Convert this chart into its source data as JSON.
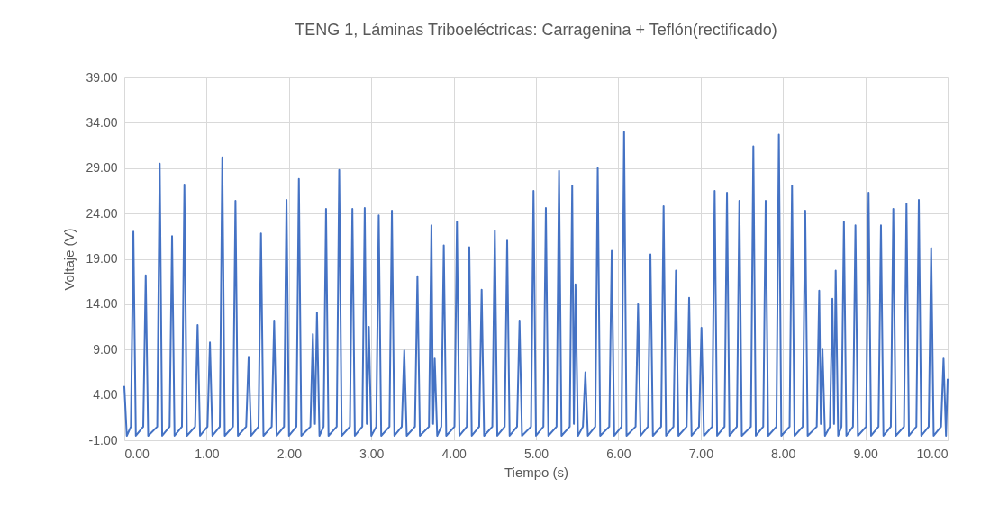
{
  "chart_data": {
    "type": "line",
    "title": "TENG 1, Láminas Triboeléctricas: Carragenina + Teflón(rectificado)",
    "xlabel": "Tiempo (s)",
    "ylabel": "Voltaje (V)",
    "x": [
      0,
      0.03,
      0.08,
      0.11,
      0.14,
      0.23,
      0.26,
      0.29,
      0.4,
      0.43,
      0.46,
      0.55,
      0.58,
      0.61,
      0.7,
      0.73,
      0.76,
      0.86,
      0.89,
      0.92,
      1.01,
      1.04,
      1.07,
      1.16,
      1.19,
      1.22,
      1.32,
      1.35,
      1.38,
      1.48,
      1.51,
      1.54,
      1.63,
      1.66,
      1.69,
      1.79,
      1.82,
      1.85,
      1.94,
      1.97,
      2.0,
      2.09,
      2.12,
      2.15,
      2.26,
      2.29,
      2.315,
      2.34,
      2.37,
      2.42,
      2.45,
      2.48,
      2.58,
      2.61,
      2.64,
      2.74,
      2.77,
      2.8,
      2.89,
      2.92,
      2.945,
      2.97,
      3.0,
      3.06,
      3.09,
      3.12,
      3.22,
      3.25,
      3.28,
      3.37,
      3.4,
      3.43,
      3.53,
      3.56,
      3.59,
      3.7,
      3.73,
      3.75,
      3.77,
      3.8,
      3.85,
      3.88,
      3.91,
      4.01,
      4.04,
      4.07,
      4.16,
      4.19,
      4.22,
      4.31,
      4.34,
      4.37,
      4.47,
      4.5,
      4.53,
      4.62,
      4.65,
      4.68,
      4.77,
      4.8,
      4.83,
      4.94,
      4.97,
      5.0,
      5.09,
      5.12,
      5.15,
      5.25,
      5.28,
      5.31,
      5.41,
      5.44,
      5.46,
      5.48,
      5.51,
      5.57,
      5.6,
      5.63,
      5.72,
      5.75,
      5.78,
      5.89,
      5.92,
      5.95,
      6.04,
      6.07,
      6.1,
      6.21,
      6.24,
      6.27,
      6.36,
      6.39,
      6.42,
      6.52,
      6.55,
      6.58,
      6.67,
      6.7,
      6.73,
      6.83,
      6.86,
      6.89,
      6.98,
      7.01,
      7.04,
      7.14,
      7.17,
      7.2,
      7.29,
      7.32,
      7.35,
      7.44,
      7.47,
      7.5,
      7.61,
      7.64,
      7.67,
      7.76,
      7.79,
      7.82,
      7.92,
      7.95,
      7.98,
      8.08,
      8.11,
      8.14,
      8.24,
      8.27,
      8.3,
      8.41,
      8.44,
      8.46,
      8.48,
      8.51,
      8.57,
      8.6,
      8.62,
      8.64,
      8.67,
      8.71,
      8.74,
      8.77,
      8.85,
      8.88,
      8.91,
      9.01,
      9.04,
      9.07,
      9.16,
      9.19,
      9.22,
      9.31,
      9.34,
      9.37,
      9.47,
      9.5,
      9.53,
      9.62,
      9.65,
      9.68,
      9.77,
      9.8,
      9.83,
      9.92,
      9.95,
      9.98,
      10.0
    ],
    "series": [
      {
        "color": "#4472c4",
        "values": [
          4.9,
          -0.5,
          0.5,
          22.0,
          -0.5,
          0.5,
          17.2,
          -0.5,
          0.5,
          29.5,
          -0.5,
          0.5,
          21.5,
          -0.5,
          0.5,
          27.2,
          -0.5,
          0.5,
          11.7,
          -0.5,
          0.5,
          9.8,
          -0.5,
          0.5,
          30.2,
          -0.5,
          0.5,
          25.4,
          -0.5,
          0.5,
          8.2,
          -0.5,
          0.5,
          21.8,
          -0.5,
          0.5,
          12.2,
          -0.5,
          0.5,
          25.5,
          -0.5,
          0.5,
          27.8,
          -0.5,
          0.5,
          10.7,
          0.8,
          13.1,
          -0.5,
          0.5,
          24.5,
          -0.5,
          0.5,
          28.8,
          -0.5,
          0.5,
          24.5,
          -0.5,
          0.5,
          24.6,
          0.8,
          11.5,
          -0.5,
          0.5,
          23.8,
          -0.5,
          0.5,
          24.3,
          -0.5,
          0.5,
          8.9,
          -0.5,
          0.5,
          17.1,
          -0.5,
          0.5,
          22.7,
          0.8,
          8.0,
          -0.5,
          0.5,
          20.5,
          -0.5,
          0.5,
          23.1,
          -0.5,
          0.5,
          20.3,
          -0.5,
          0.5,
          15.6,
          -0.5,
          0.5,
          22.1,
          -0.5,
          0.5,
          21.0,
          -0.5,
          0.5,
          12.2,
          -0.5,
          0.5,
          26.5,
          -0.5,
          0.5,
          24.6,
          -0.5,
          0.5,
          28.7,
          -0.5,
          0.5,
          27.1,
          0.8,
          16.2,
          -0.5,
          0.5,
          6.5,
          -0.5,
          0.5,
          29.0,
          -0.5,
          0.5,
          19.9,
          -0.5,
          0.5,
          33.0,
          -0.5,
          0.5,
          14.0,
          -0.5,
          0.5,
          19.5,
          -0.5,
          0.5,
          24.8,
          -0.5,
          0.5,
          17.7,
          -0.5,
          0.5,
          14.7,
          -0.5,
          0.5,
          11.4,
          -0.5,
          0.5,
          26.5,
          -0.5,
          0.5,
          26.3,
          -0.5,
          0.5,
          25.4,
          -0.5,
          0.5,
          31.4,
          -0.5,
          0.5,
          25.4,
          -0.5,
          0.5,
          32.7,
          -0.5,
          0.5,
          27.1,
          -0.5,
          0.5,
          24.3,
          -0.5,
          0.5,
          15.5,
          0.8,
          9.0,
          -0.5,
          0.5,
          14.6,
          0.8,
          17.7,
          -0.5,
          0.5,
          23.1,
          -0.5,
          0.5,
          22.7,
          -0.5,
          0.5,
          26.3,
          -0.5,
          0.5,
          22.7,
          -0.5,
          0.5,
          24.5,
          -0.5,
          0.5,
          25.1,
          -0.5,
          0.5,
          25.5,
          -0.5,
          0.5,
          20.2,
          -0.5,
          0.5,
          8.0,
          -0.5,
          5.7
        ]
      }
    ],
    "xlim": [
      0,
      10
    ],
    "ylim": [
      -1,
      39
    ],
    "xticks": [
      {
        "value": 0,
        "label": "0.00"
      },
      {
        "value": 1,
        "label": "1.00"
      },
      {
        "value": 2,
        "label": "2.00"
      },
      {
        "value": 3,
        "label": "3.00"
      },
      {
        "value": 4,
        "label": "4.00"
      },
      {
        "value": 5,
        "label": "5.00"
      },
      {
        "value": 6,
        "label": "6.00"
      },
      {
        "value": 7,
        "label": "7.00"
      },
      {
        "value": 8,
        "label": "8.00"
      },
      {
        "value": 9,
        "label": "9.00"
      },
      {
        "value": 10,
        "label": "10.00"
      }
    ],
    "yticks": [
      {
        "value": -1,
        "label": "-1.00"
      },
      {
        "value": 4,
        "label": "4.00"
      },
      {
        "value": 9,
        "label": "9.00"
      },
      {
        "value": 14,
        "label": "14.00"
      },
      {
        "value": 19,
        "label": "19.00"
      },
      {
        "value": 24,
        "label": "24.00"
      },
      {
        "value": 29,
        "label": "29.00"
      },
      {
        "value": 34,
        "label": "34.00"
      },
      {
        "value": 39,
        "label": "39.00"
      }
    ],
    "grid": true,
    "line_style": "solid",
    "marker": "none"
  }
}
